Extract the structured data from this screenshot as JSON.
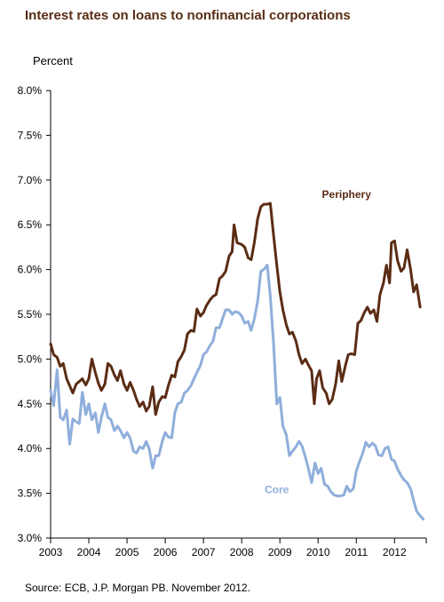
{
  "header": {
    "title": "Interest rates on loans to nonfinancial corporations",
    "unit": "Percent"
  },
  "footer": {
    "source": "Source: ECB, J.P. Morgan PB. November 2012."
  },
  "chart_data": {
    "type": "line",
    "title": "Interest rates on loans to nonfinancial corporations",
    "ylabel": "Percent",
    "xlabel": "",
    "xlim": [
      2003,
      2012.83
    ],
    "ylim": [
      3.0,
      8.0
    ],
    "grid": false,
    "x_ticks": [
      "2003",
      "2004",
      "2005",
      "2006",
      "2007",
      "2008",
      "2009",
      "2010",
      "2011",
      "2012"
    ],
    "y_ticks": [
      "3.0%",
      "3.5%",
      "4.0%",
      "4.5%",
      "5.0%",
      "5.5%",
      "6.0%",
      "6.5%",
      "7.0%",
      "7.5%",
      "8.0%"
    ],
    "colors": {
      "periphery": "#5b2c14",
      "core": "#8faedb",
      "axis": "#000000"
    },
    "series": [
      {
        "name": "Periphery",
        "color": "#5b2c14",
        "points": [
          [
            2003.0,
            5.17
          ],
          [
            2003.08,
            5.05
          ],
          [
            2003.17,
            5.02
          ],
          [
            2003.25,
            4.92
          ],
          [
            2003.33,
            4.95
          ],
          [
            2003.42,
            4.78
          ],
          [
            2003.5,
            4.7
          ],
          [
            2003.58,
            4.62
          ],
          [
            2003.67,
            4.72
          ],
          [
            2003.75,
            4.75
          ],
          [
            2003.83,
            4.78
          ],
          [
            2003.92,
            4.71
          ],
          [
            2004.0,
            4.78
          ],
          [
            2004.08,
            5.0
          ],
          [
            2004.17,
            4.85
          ],
          [
            2004.25,
            4.73
          ],
          [
            2004.33,
            4.65
          ],
          [
            2004.42,
            4.72
          ],
          [
            2004.5,
            4.95
          ],
          [
            2004.58,
            4.92
          ],
          [
            2004.67,
            4.82
          ],
          [
            2004.75,
            4.76
          ],
          [
            2004.83,
            4.87
          ],
          [
            2004.92,
            4.72
          ],
          [
            2005.0,
            4.65
          ],
          [
            2005.08,
            4.74
          ],
          [
            2005.17,
            4.65
          ],
          [
            2005.25,
            4.55
          ],
          [
            2005.33,
            4.47
          ],
          [
            2005.42,
            4.52
          ],
          [
            2005.5,
            4.42
          ],
          [
            2005.58,
            4.47
          ],
          [
            2005.67,
            4.69
          ],
          [
            2005.75,
            4.38
          ],
          [
            2005.83,
            4.52
          ],
          [
            2005.92,
            4.58
          ],
          [
            2006.0,
            4.57
          ],
          [
            2006.08,
            4.7
          ],
          [
            2006.17,
            4.82
          ],
          [
            2006.25,
            4.8
          ],
          [
            2006.33,
            4.97
          ],
          [
            2006.42,
            5.03
          ],
          [
            2006.5,
            5.1
          ],
          [
            2006.58,
            5.28
          ],
          [
            2006.67,
            5.32
          ],
          [
            2006.75,
            5.31
          ],
          [
            2006.83,
            5.56
          ],
          [
            2006.92,
            5.48
          ],
          [
            2007.0,
            5.52
          ],
          [
            2007.08,
            5.6
          ],
          [
            2007.17,
            5.66
          ],
          [
            2007.25,
            5.7
          ],
          [
            2007.33,
            5.72
          ],
          [
            2007.42,
            5.9
          ],
          [
            2007.5,
            5.93
          ],
          [
            2007.58,
            5.98
          ],
          [
            2007.67,
            6.15
          ],
          [
            2007.75,
            6.2
          ],
          [
            2007.8,
            6.5
          ],
          [
            2007.88,
            6.3
          ],
          [
            2008.0,
            6.28
          ],
          [
            2008.08,
            6.25
          ],
          [
            2008.17,
            6.13
          ],
          [
            2008.25,
            6.11
          ],
          [
            2008.33,
            6.3
          ],
          [
            2008.42,
            6.57
          ],
          [
            2008.5,
            6.7
          ],
          [
            2008.58,
            6.73
          ],
          [
            2008.67,
            6.73
          ],
          [
            2008.75,
            6.74
          ],
          [
            2008.83,
            6.4
          ],
          [
            2008.92,
            6.05
          ],
          [
            2009.0,
            5.75
          ],
          [
            2009.08,
            5.55
          ],
          [
            2009.17,
            5.38
          ],
          [
            2009.25,
            5.28
          ],
          [
            2009.33,
            5.3
          ],
          [
            2009.42,
            5.2
          ],
          [
            2009.5,
            5.05
          ],
          [
            2009.58,
            4.95
          ],
          [
            2009.67,
            5.0
          ],
          [
            2009.75,
            4.93
          ],
          [
            2009.83,
            4.87
          ],
          [
            2009.9,
            4.5
          ],
          [
            2009.96,
            4.78
          ],
          [
            2010.04,
            4.87
          ],
          [
            2010.12,
            4.68
          ],
          [
            2010.21,
            4.62
          ],
          [
            2010.29,
            4.5
          ],
          [
            2010.37,
            4.55
          ],
          [
            2010.46,
            4.72
          ],
          [
            2010.54,
            4.98
          ],
          [
            2010.62,
            4.75
          ],
          [
            2010.71,
            4.92
          ],
          [
            2010.79,
            5.05
          ],
          [
            2010.87,
            5.06
          ],
          [
            2010.96,
            5.05
          ],
          [
            2011.04,
            5.4
          ],
          [
            2011.12,
            5.43
          ],
          [
            2011.21,
            5.52
          ],
          [
            2011.29,
            5.58
          ],
          [
            2011.37,
            5.51
          ],
          [
            2011.46,
            5.55
          ],
          [
            2011.54,
            5.42
          ],
          [
            2011.62,
            5.72
          ],
          [
            2011.71,
            5.85
          ],
          [
            2011.79,
            6.05
          ],
          [
            2011.87,
            5.85
          ],
          [
            2011.92,
            6.3
          ],
          [
            2012.0,
            6.32
          ],
          [
            2012.08,
            6.1
          ],
          [
            2012.17,
            5.98
          ],
          [
            2012.25,
            6.02
          ],
          [
            2012.33,
            6.22
          ],
          [
            2012.42,
            6.0
          ],
          [
            2012.5,
            5.75
          ],
          [
            2012.58,
            5.83
          ],
          [
            2012.67,
            5.58
          ]
        ]
      },
      {
        "name": "Core",
        "color": "#8faedb",
        "points": [
          [
            2003.0,
            4.65
          ],
          [
            2003.08,
            4.48
          ],
          [
            2003.17,
            4.88
          ],
          [
            2003.25,
            4.35
          ],
          [
            2003.33,
            4.32
          ],
          [
            2003.42,
            4.43
          ],
          [
            2003.5,
            4.05
          ],
          [
            2003.58,
            4.33
          ],
          [
            2003.67,
            4.3
          ],
          [
            2003.75,
            4.28
          ],
          [
            2003.83,
            4.63
          ],
          [
            2003.92,
            4.38
          ],
          [
            2004.0,
            4.5
          ],
          [
            2004.08,
            4.32
          ],
          [
            2004.17,
            4.4
          ],
          [
            2004.25,
            4.18
          ],
          [
            2004.33,
            4.35
          ],
          [
            2004.42,
            4.5
          ],
          [
            2004.5,
            4.35
          ],
          [
            2004.58,
            4.32
          ],
          [
            2004.67,
            4.2
          ],
          [
            2004.75,
            4.25
          ],
          [
            2004.83,
            4.2
          ],
          [
            2004.92,
            4.12
          ],
          [
            2005.0,
            4.18
          ],
          [
            2005.08,
            4.12
          ],
          [
            2005.17,
            3.97
          ],
          [
            2005.25,
            3.95
          ],
          [
            2005.33,
            4.02
          ],
          [
            2005.42,
            4.0
          ],
          [
            2005.5,
            4.08
          ],
          [
            2005.58,
            4.0
          ],
          [
            2005.67,
            3.78
          ],
          [
            2005.75,
            3.92
          ],
          [
            2005.83,
            3.92
          ],
          [
            2005.92,
            4.08
          ],
          [
            2006.0,
            4.18
          ],
          [
            2006.08,
            4.13
          ],
          [
            2006.17,
            4.12
          ],
          [
            2006.25,
            4.4
          ],
          [
            2006.33,
            4.5
          ],
          [
            2006.42,
            4.52
          ],
          [
            2006.5,
            4.62
          ],
          [
            2006.58,
            4.65
          ],
          [
            2006.67,
            4.7
          ],
          [
            2006.75,
            4.78
          ],
          [
            2006.83,
            4.85
          ],
          [
            2006.92,
            4.93
          ],
          [
            2007.0,
            5.05
          ],
          [
            2007.08,
            5.08
          ],
          [
            2007.17,
            5.15
          ],
          [
            2007.25,
            5.2
          ],
          [
            2007.33,
            5.35
          ],
          [
            2007.42,
            5.35
          ],
          [
            2007.5,
            5.45
          ],
          [
            2007.58,
            5.55
          ],
          [
            2007.67,
            5.55
          ],
          [
            2007.75,
            5.5
          ],
          [
            2007.83,
            5.53
          ],
          [
            2007.92,
            5.52
          ],
          [
            2008.0,
            5.48
          ],
          [
            2008.08,
            5.4
          ],
          [
            2008.17,
            5.42
          ],
          [
            2008.25,
            5.32
          ],
          [
            2008.33,
            5.45
          ],
          [
            2008.42,
            5.65
          ],
          [
            2008.5,
            5.98
          ],
          [
            2008.58,
            6.0
          ],
          [
            2008.67,
            6.05
          ],
          [
            2008.75,
            5.7
          ],
          [
            2008.83,
            5.2
          ],
          [
            2008.92,
            4.5
          ],
          [
            2009.0,
            4.57
          ],
          [
            2009.08,
            4.25
          ],
          [
            2009.17,
            4.15
          ],
          [
            2009.25,
            3.92
          ],
          [
            2009.33,
            3.97
          ],
          [
            2009.42,
            4.02
          ],
          [
            2009.5,
            4.08
          ],
          [
            2009.58,
            4.03
          ],
          [
            2009.67,
            3.9
          ],
          [
            2009.75,
            3.77
          ],
          [
            2009.83,
            3.62
          ],
          [
            2009.92,
            3.84
          ],
          [
            2010.0,
            3.72
          ],
          [
            2010.08,
            3.78
          ],
          [
            2010.17,
            3.6
          ],
          [
            2010.25,
            3.58
          ],
          [
            2010.33,
            3.52
          ],
          [
            2010.42,
            3.48
          ],
          [
            2010.5,
            3.47
          ],
          [
            2010.58,
            3.47
          ],
          [
            2010.67,
            3.48
          ],
          [
            2010.75,
            3.58
          ],
          [
            2010.83,
            3.52
          ],
          [
            2010.92,
            3.55
          ],
          [
            2011.0,
            3.75
          ],
          [
            2011.08,
            3.85
          ],
          [
            2011.17,
            3.95
          ],
          [
            2011.25,
            4.07
          ],
          [
            2011.33,
            4.02
          ],
          [
            2011.42,
            4.06
          ],
          [
            2011.5,
            4.03
          ],
          [
            2011.58,
            3.93
          ],
          [
            2011.67,
            3.92
          ],
          [
            2011.75,
            4.0
          ],
          [
            2011.83,
            4.02
          ],
          [
            2011.92,
            3.88
          ],
          [
            2012.0,
            3.86
          ],
          [
            2012.08,
            3.77
          ],
          [
            2012.17,
            3.7
          ],
          [
            2012.25,
            3.65
          ],
          [
            2012.33,
            3.62
          ],
          [
            2012.42,
            3.55
          ],
          [
            2012.5,
            3.42
          ],
          [
            2012.58,
            3.3
          ],
          [
            2012.67,
            3.25
          ],
          [
            2012.75,
            3.21
          ]
        ]
      }
    ]
  }
}
